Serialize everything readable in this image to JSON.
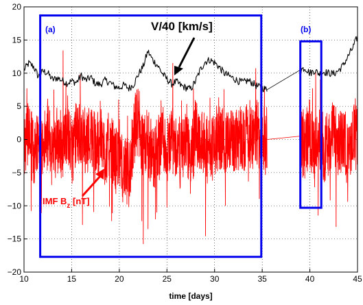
{
  "chart_data": {
    "type": "line",
    "title": "",
    "xlabel": "time [days]",
    "ylabel": "",
    "xlim": [
      10,
      45
    ],
    "ylim": [
      -20,
      20
    ],
    "xticks": [
      10,
      15,
      20,
      25,
      30,
      35,
      40,
      45
    ],
    "yticks": [
      -20,
      -15,
      -10,
      -5,
      0,
      5,
      10,
      15,
      20
    ],
    "grid": true,
    "series": [
      {
        "key": "velocity",
        "color": "#000000",
        "segments": [
          {
            "x": [
              10,
              10.5,
              11,
              11.5,
              12,
              12.5,
              13,
              13.5,
              14,
              14.5,
              15,
              15.5,
              16,
              16.5,
              17,
              17.5,
              18,
              18.5,
              19,
              19.5,
              20,
              20.5,
              21,
              21.5,
              22,
              22.5,
              23,
              23.5,
              24,
              24.5,
              25,
              25.5,
              26,
              26.5,
              27,
              27.5,
              28,
              28.5,
              29,
              29.5,
              30,
              30.5,
              31,
              31.5,
              32,
              32.5,
              33,
              33.5,
              34,
              34.5,
              35,
              35.5
            ],
            "y": [
              10.5,
              11.5,
              11.0,
              9.5,
              10.3,
              10.0,
              9.0,
              9.3,
              8.9,
              8.5,
              8.8,
              8.6,
              9.6,
              8.9,
              9.4,
              8.4,
              8.3,
              8.9,
              8.6,
              8.0,
              7.8,
              8.2,
              7.7,
              8.3,
              9.8,
              11.0,
              13.3,
              12.0,
              11.2,
              10.0,
              9.1,
              8.4,
              8.7,
              8.1,
              7.8,
              7.6,
              8.8,
              10.5,
              11.7,
              12.0,
              11.6,
              10.9,
              10.0,
              9.6,
              9.2,
              8.8,
              8.6,
              8.9,
              8.5,
              8.0,
              7.8,
              7.5
            ]
          },
          {
            "x": [
              39,
              39.5,
              40,
              40.5,
              41,
              41.5,
              42,
              42.5,
              43,
              43.5,
              44,
              44.5,
              45
            ],
            "y": [
              10.5,
              10.8,
              10.0,
              10.4,
              9.9,
              10.2,
              10.0,
              9.9,
              10.4,
              11.2,
              12.5,
              13.8,
              15.5
            ]
          }
        ]
      },
      {
        "key": "imf_bz",
        "color": "#ff0000",
        "segments": [
          {
            "x": [
              10,
              10.5,
              11,
              11.5,
              12,
              12.5,
              13,
              13.5,
              14,
              14.5,
              15,
              15.5,
              16,
              16.5,
              17,
              17.5,
              18,
              18.5,
              19,
              19.5,
              20,
              20.5,
              21,
              21.5,
              22,
              22.5,
              23,
              23.5,
              24,
              24.5,
              25,
              25.5,
              26,
              26.5,
              27,
              27.5,
              28,
              28.5,
              29,
              29.5,
              30,
              30.5,
              31,
              31.5,
              32,
              32.5,
              33,
              33.5,
              34,
              34.5,
              35,
              35.5
            ],
            "y": [
              -1.0,
              1.5,
              -2.0,
              0.5,
              -1.5,
              1.0,
              -2.5,
              0.0,
              -1.0,
              2.0,
              -2.0,
              1.0,
              0.5,
              -0.5,
              1.0,
              -1.5,
              0.5,
              -2.0,
              -0.5,
              -3.0,
              -2.0,
              -4.5,
              -5.5,
              1.0,
              3.0,
              -2.0,
              0.5,
              -3.0,
              -1.5,
              1.0,
              -2.0,
              0.0,
              -1.0,
              -2.5,
              0.5,
              -3.5,
              1.5,
              0.0,
              -1.0,
              -2.0,
              -0.5,
              1.0,
              -1.0,
              0.5,
              -0.5,
              1.0,
              0.0,
              1.5,
              0.5,
              1.0,
              0.5,
              0.0
            ]
          },
          {
            "x": [
              39,
              39.5,
              40,
              40.5,
              41,
              41.5,
              42,
              42.5,
              43,
              43.5,
              44,
              44.5,
              45
            ],
            "y": [
              0.5,
              -1.0,
              1.0,
              -2.0,
              0.5,
              -1.5,
              0.0,
              1.0,
              -1.0,
              0.5,
              -2.5,
              1.0,
              0.5
            ]
          }
        ]
      }
    ],
    "annotations": {
      "velocity_label": "V/40 [km/s]",
      "bz_label_main": "IMF B",
      "bz_label_sub": "z",
      "bz_label_unit": " [nT]",
      "box_a_label": "(a)",
      "box_b_label": "(b)"
    },
    "boxes": [
      {
        "key": "a",
        "x": [
          11.7,
          34.9
        ],
        "y": [
          -17.7,
          18.7
        ],
        "color": "#0000ee"
      },
      {
        "key": "b",
        "x": [
          39.0,
          41.2
        ],
        "y": [
          -10.3,
          14.8
        ],
        "color": "#0000ee"
      }
    ]
  }
}
